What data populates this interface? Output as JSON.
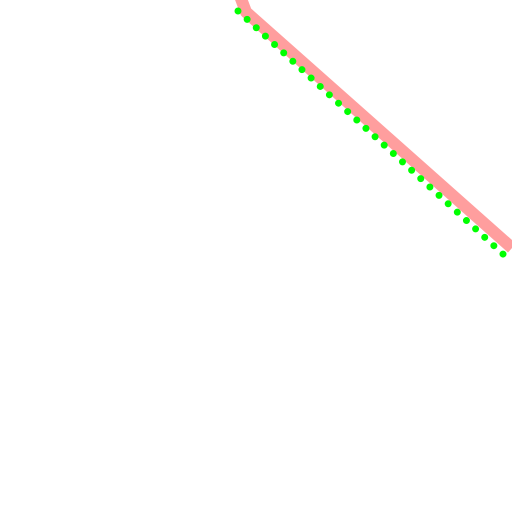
{
  "map": {
    "background_color": "#ffffff",
    "route_band": {
      "color": "#ff9e9e",
      "description_icon": "route-band-line"
    },
    "route_trail": {
      "color": "#00ff00",
      "style": "dotted",
      "description_icon": "dotted-trail-line"
    }
  }
}
